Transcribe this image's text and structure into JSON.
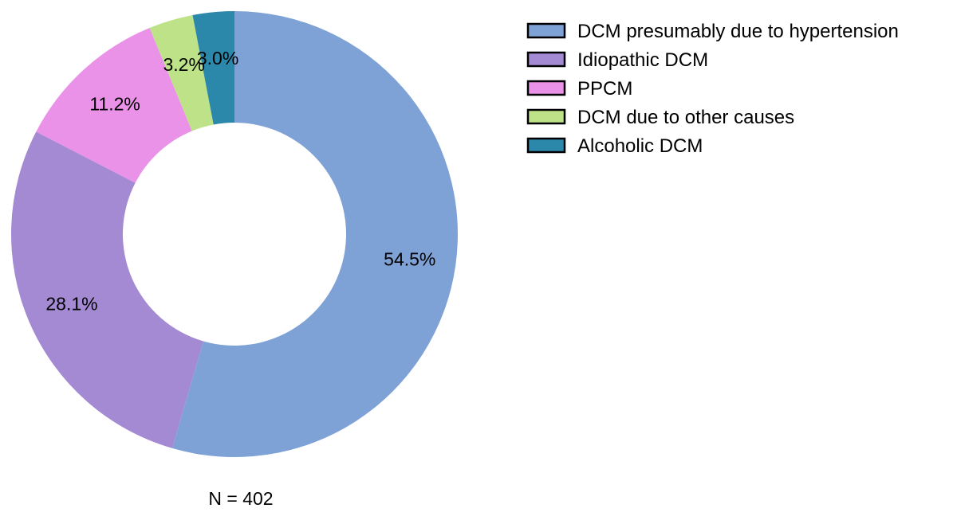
{
  "chart_data": {
    "type": "pie",
    "variant": "donut",
    "categories": [
      "DCM presumably due to hypertension",
      "Idiopathic DCM",
      "PPCM",
      "DCM due to other causes",
      "Alcoholic DCM"
    ],
    "values": [
      54.5,
      28.1,
      11.2,
      3.2,
      3.0
    ],
    "value_labels": [
      "54.5%",
      "28.1%",
      "11.2%",
      "3.2%",
      "3.0%"
    ],
    "colors": [
      "#7ea1d6",
      "#a489d3",
      "#ea92e8",
      "#bde287",
      "#2b88aa"
    ],
    "start": "12 o'clock",
    "direction": "clockwise",
    "legend_position": "top-right",
    "caption": "N = 402"
  }
}
